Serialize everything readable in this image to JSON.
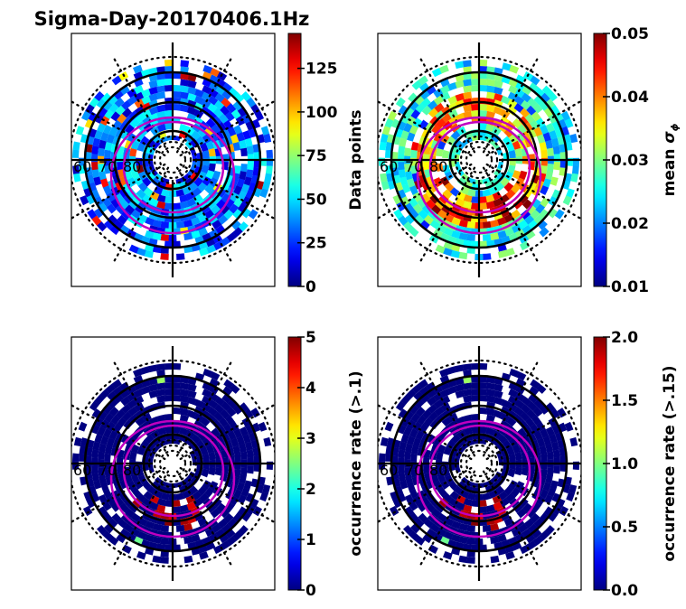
{
  "figure_title": "Sigma-Day-20170406.1Hz",
  "chart_data": [
    {
      "type": "heatmap",
      "projection": "polar (MLAT-MLT dial)",
      "title": "",
      "latitude_labels": [
        "60",
        "70",
        "80"
      ],
      "colormap": "jet",
      "colorbar": {
        "label": "Data points",
        "range": [
          0,
          145
        ],
        "ticks": [
          0,
          25,
          50,
          75,
          100,
          125
        ],
        "tick_labels": [
          "0",
          "25",
          "50",
          "75",
          "100",
          "125"
        ]
      },
      "typical_values": "mostly 5-60, scattered bins 90-145 near dusk/dawn rings",
      "seed": 11,
      "value_dist": "counts"
    },
    {
      "type": "heatmap",
      "projection": "polar (MLAT-MLT dial)",
      "title": "",
      "latitude_labels": [
        "60",
        "70",
        "80"
      ],
      "colormap": "jet",
      "colorbar": {
        "label": "mean σφ",
        "label_main": "mean ",
        "label_symbol": "σ",
        "label_sub": "ϕ",
        "range": [
          0.01,
          0.05
        ],
        "ticks": [
          0.01,
          0.02,
          0.03,
          0.04,
          0.05
        ],
        "tick_labels": [
          "0.01",
          "0.02",
          "0.03",
          "0.04",
          "0.05"
        ]
      },
      "typical_values": "0.02-0.03 at outer rings, 0.035-0.05 in auroral oval (dusk side)",
      "seed": 23,
      "value_dist": "sigma"
    },
    {
      "type": "heatmap",
      "projection": "polar (MLAT-MLT dial)",
      "title": "",
      "latitude_labels": [
        "60",
        "70",
        "80"
      ],
      "colormap": "jet",
      "colorbar": {
        "label": "occurrence rate (>.1)",
        "range": [
          0,
          5
        ],
        "ticks": [
          0,
          1,
          2,
          3,
          4,
          5
        ],
        "tick_labels": [
          "0",
          "1",
          "2",
          "3",
          "4",
          "5"
        ]
      },
      "typical_values": "~0 almost everywhere; up to 5 near 70-75 MLAT pre-midnight/dusk",
      "seed": 37,
      "value_dist": "occ1"
    },
    {
      "type": "heatmap",
      "projection": "polar (MLAT-MLT dial)",
      "title": "",
      "latitude_labels": [
        "60",
        "70",
        "80"
      ],
      "colormap": "jet",
      "colorbar": {
        "label": "occurrence rate (>.15)",
        "range": [
          0,
          2
        ],
        "ticks": [
          0,
          0.5,
          1.0,
          1.5,
          2.0
        ],
        "tick_labels": [
          "0.0",
          "0.5",
          "1.0",
          "1.5",
          "2.0"
        ]
      },
      "typical_values": "~0 almost everywhere; up to 2 near 70-75 MLAT dusk side",
      "seed": 37,
      "value_dist": "occ2"
    }
  ],
  "colors": {
    "oval": "#c000c0",
    "grid": "#000000",
    "axes_frame": "#000000"
  }
}
